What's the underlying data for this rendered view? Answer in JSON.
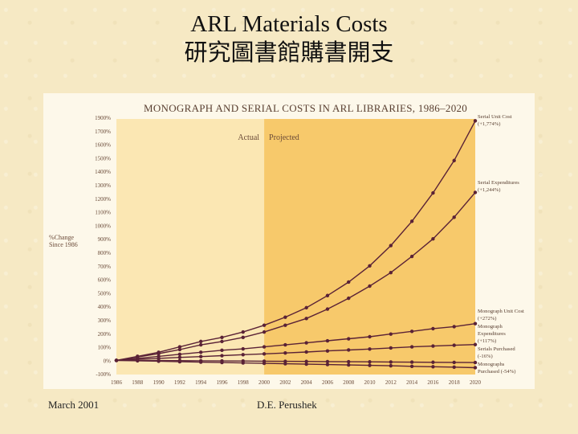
{
  "slide": {
    "title_en": "ARL Materials Costs",
    "title_zh": "研究圖書館購書開支",
    "footer_left": "March 2001",
    "footer_center": "D.E. Perushek"
  },
  "colors": {
    "background": "#f6e9c4",
    "actual_shade": "#fbe7b3",
    "projected_shade": "#f7c96b",
    "line": "#5a2236"
  },
  "chart_data": {
    "type": "line",
    "title": "MONOGRAPH AND SERIAL COSTS IN ARL LIBRARIES, 1986–2020",
    "ylabel_lines": [
      "%Change",
      "Since 1986"
    ],
    "regions": [
      {
        "label": "Actual",
        "from": 1986,
        "to": 2000
      },
      {
        "label": "Projected",
        "from": 2000,
        "to": 2020
      }
    ],
    "x_ticks": [
      "1986",
      "1988",
      "1990",
      "1992",
      "1994",
      "1996",
      "1998",
      "2000",
      "2002",
      "2004",
      "2006",
      "2008",
      "2010",
      "2012",
      "2014",
      "2016",
      "2018",
      "2020"
    ],
    "y_ticks": [
      "1900%",
      "1700%",
      "1600%",
      "1500%",
      "1400%",
      "1300%",
      "1200%",
      "1100%",
      "1000%",
      "900%",
      "800%",
      "700%",
      "600%",
      "500%",
      "400%",
      "300%",
      "200%",
      "100%",
      "0%",
      "-100%"
    ],
    "xlim": [
      1986,
      2020
    ],
    "ylim": [
      -100,
      1800
    ],
    "series": [
      {
        "name": "Serial Unit Cost",
        "annotation": "(+1,774%)",
        "x": [
          1986,
          1988,
          1990,
          1992,
          1994,
          1996,
          1998,
          2000,
          2002,
          2004,
          2006,
          2008,
          2010,
          2012,
          2014,
          2016,
          2018,
          2020
        ],
        "values": [
          0,
          30,
          60,
          100,
          140,
          170,
          210,
          260,
          320,
          390,
          480,
          580,
          700,
          850,
          1030,
          1240,
          1480,
          1774
        ]
      },
      {
        "name": "Serial Expenditures",
        "annotation": "(+1,244%)",
        "x": [
          1986,
          1988,
          1990,
          1992,
          1994,
          1996,
          1998,
          2000,
          2002,
          2004,
          2006,
          2008,
          2010,
          2012,
          2014,
          2016,
          2018,
          2020
        ],
        "values": [
          0,
          25,
          50,
          80,
          115,
          140,
          170,
          210,
          260,
          310,
          380,
          460,
          550,
          650,
          770,
          900,
          1060,
          1244
        ]
      },
      {
        "name": "Monograph Unit Cost",
        "annotation": "(+272%)",
        "x": [
          1986,
          1988,
          1990,
          1992,
          1994,
          1996,
          1998,
          2000,
          2002,
          2004,
          2006,
          2008,
          2010,
          2012,
          2014,
          2016,
          2018,
          2020
        ],
        "values": [
          0,
          15,
          30,
          45,
          60,
          75,
          85,
          100,
          115,
          130,
          145,
          160,
          175,
          195,
          215,
          235,
          250,
          272
        ]
      },
      {
        "name": "Monograph Expenditures",
        "annotation": "(+117%)",
        "x": [
          1986,
          1988,
          1990,
          1992,
          1994,
          1996,
          1998,
          2000,
          2002,
          2004,
          2006,
          2008,
          2010,
          2012,
          2014,
          2016,
          2018,
          2020
        ],
        "values": [
          0,
          8,
          15,
          22,
          28,
          35,
          42,
          48,
          55,
          62,
          70,
          77,
          84,
          92,
          100,
          106,
          112,
          117
        ]
      },
      {
        "name": "Serials Purchased",
        "annotation": "(-16%)",
        "x": [
          1986,
          1988,
          1990,
          1992,
          1994,
          1996,
          1998,
          2000,
          2002,
          2004,
          2006,
          2008,
          2010,
          2012,
          2014,
          2016,
          2018,
          2020
        ],
        "values": [
          0,
          0,
          -1,
          -2,
          -3,
          -4,
          -5,
          -6,
          -7,
          -8,
          -9,
          -10,
          -11,
          -12,
          -13,
          -14,
          -15,
          -16
        ]
      },
      {
        "name": "Monographs Purchased",
        "annotation": "(-54%)",
        "x": [
          1986,
          1988,
          1990,
          1992,
          1994,
          1996,
          1998,
          2000,
          2002,
          2004,
          2006,
          2008,
          2010,
          2012,
          2014,
          2016,
          2018,
          2020
        ],
        "values": [
          0,
          -3,
          -6,
          -10,
          -13,
          -16,
          -19,
          -22,
          -25,
          -28,
          -31,
          -34,
          -37,
          -40,
          -44,
          -47,
          -50,
          -54
        ]
      }
    ],
    "legend": "right, labels at line ends",
    "grid": false
  }
}
